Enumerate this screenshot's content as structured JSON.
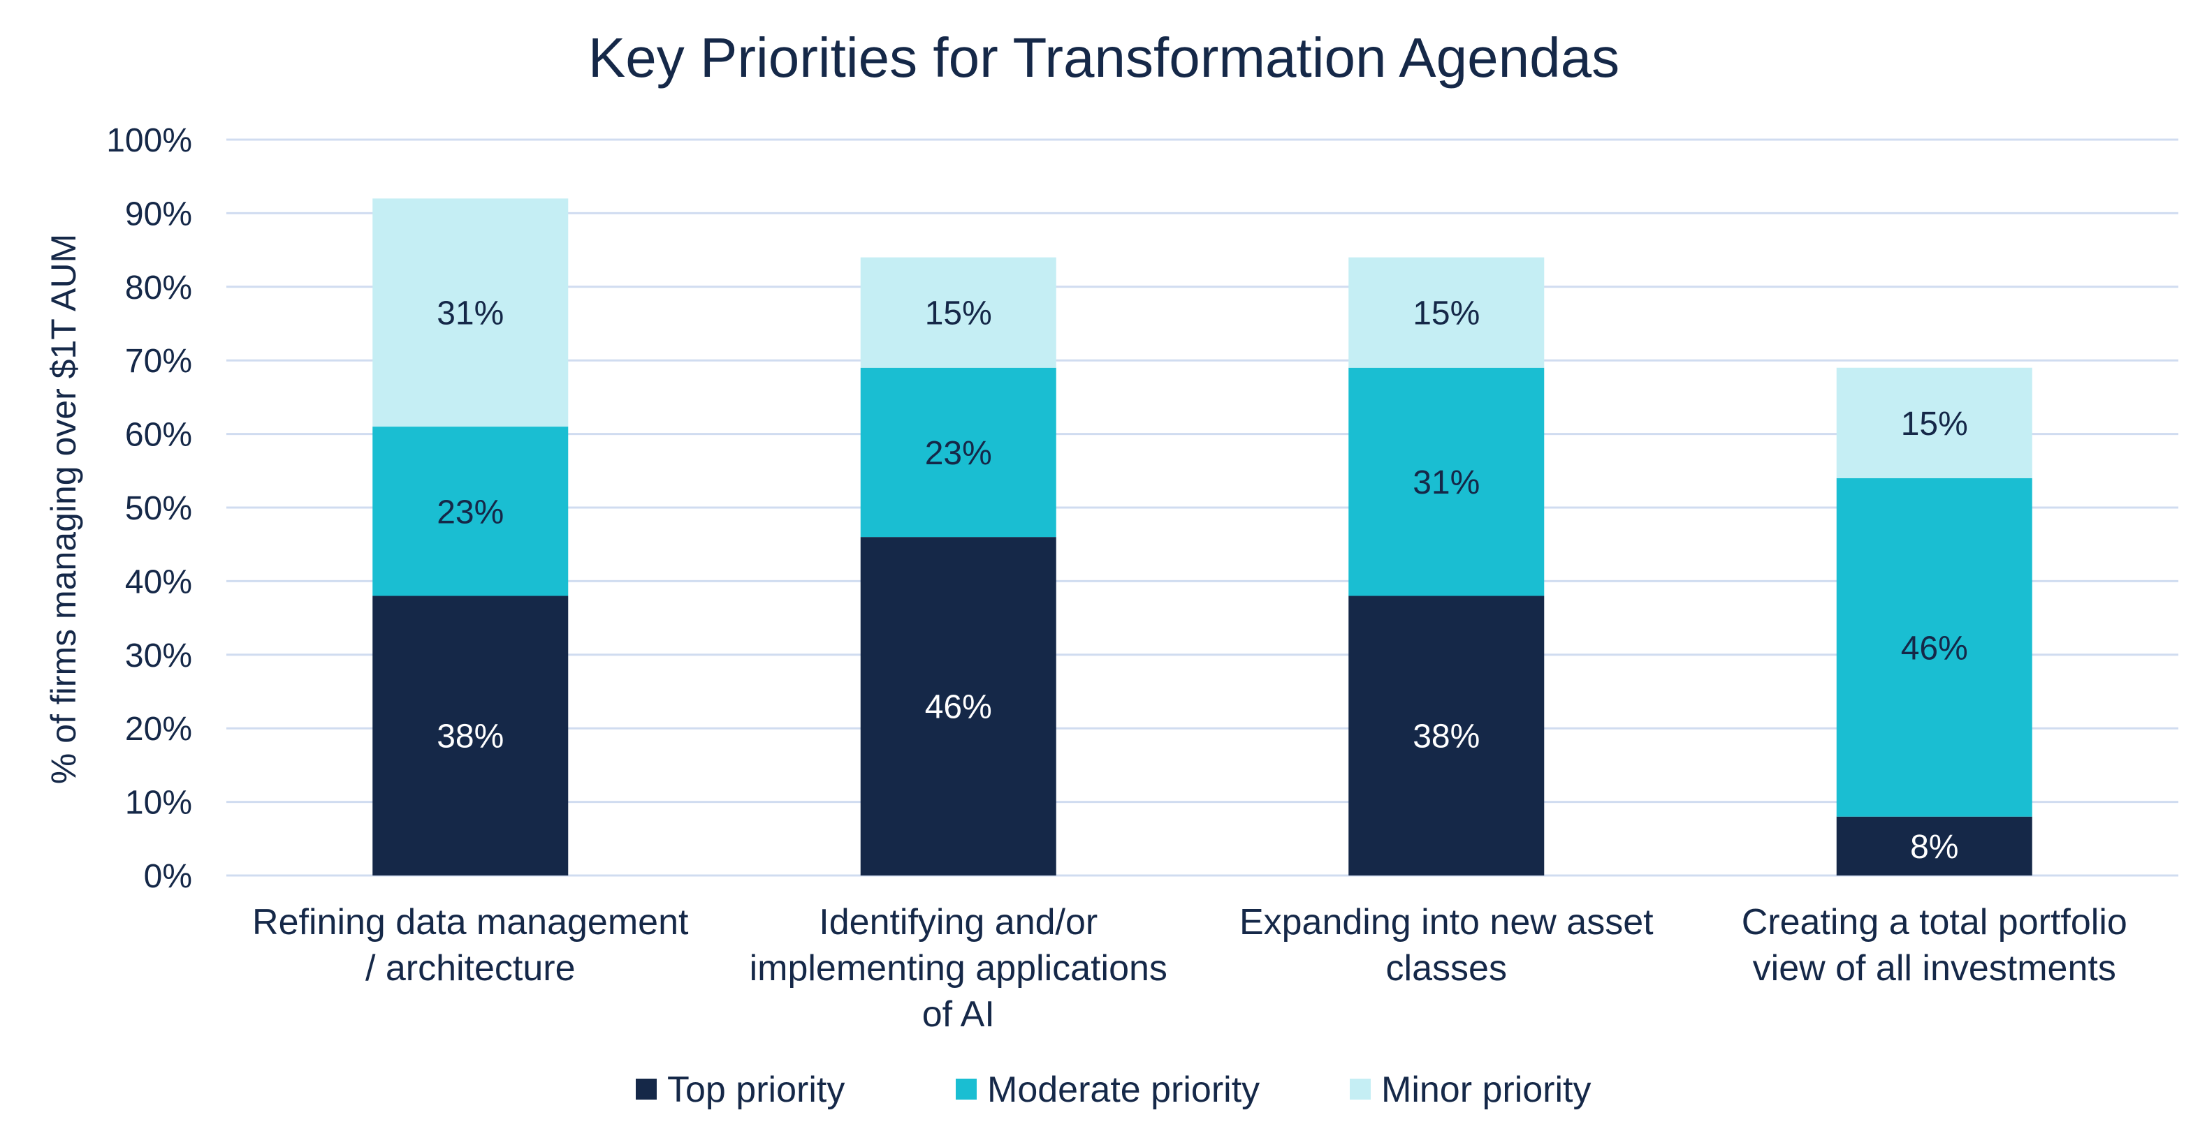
{
  "chart_data": {
    "type": "bar",
    "stacked": true,
    "title": "Key Priorities for Transformation Agendas",
    "xlabel": "",
    "ylabel": "% of firms managing over $1T AUM",
    "ylim": [
      0,
      100
    ],
    "yticks": [
      "0%",
      "10%",
      "20%",
      "30%",
      "40%",
      "50%",
      "60%",
      "70%",
      "80%",
      "90%",
      "100%"
    ],
    "grid": true,
    "legend_position": "bottom",
    "categories": [
      [
        "Refining data management",
        "/ architecture"
      ],
      [
        "Identifying and/or",
        "implementing applications",
        "of AI"
      ],
      [
        "Expanding into new asset",
        "classes"
      ],
      [
        "Creating a total portfolio",
        "view of all investments"
      ]
    ],
    "series": [
      {
        "name": "Top priority",
        "color": "#152848",
        "label_color": "#ffffff",
        "values": [
          38,
          46,
          38,
          8
        ],
        "labels": [
          "38%",
          "46%",
          "38%",
          "8%"
        ]
      },
      {
        "name": "Moderate priority",
        "color": "#1abed2",
        "label_color": "#152848",
        "values": [
          23,
          23,
          31,
          46
        ],
        "labels": [
          "23%",
          "23%",
          "31%",
          "46%"
        ]
      },
      {
        "name": "Minor priority",
        "color": "#c5eef4",
        "label_color": "#152848",
        "values": [
          31,
          15,
          15,
          15
        ],
        "labels": [
          "31%",
          "15%",
          "15%",
          "15%"
        ]
      }
    ]
  }
}
